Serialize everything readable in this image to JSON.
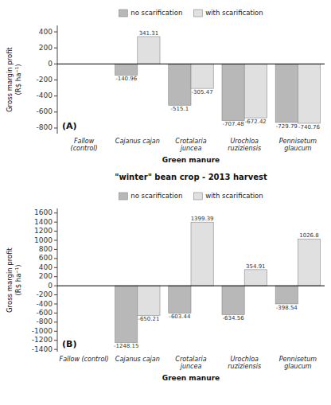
{
  "chart_data": [
    {
      "type": "bar",
      "x_label": "Green manure",
      "y_label": "Gross margin profit\n(R$ ha⁻¹)",
      "annotations": [
        "(A)"
      ],
      "categories": [
        "Fallow\n(control)",
        "Cajanus cajan",
        "Crotalaria\njuncea",
        "Urochloa\nruziziensis",
        "Pennisetum\nglaucum"
      ],
      "series": [
        {
          "name": "no scarification",
          "color": "#b8b8b8",
          "values": [
            null,
            -140.96,
            -515.1,
            -707.48,
            -729.79
          ]
        },
        {
          "name": "with scarification",
          "color": "#e0e0e0",
          "values": [
            null,
            341.31,
            -305.47,
            -672.42,
            -740.76
          ]
        }
      ],
      "ylim": [
        -870,
        480
      ],
      "yticks": [
        -800,
        -600,
        -400,
        -200,
        0,
        200,
        400
      ],
      "grid": false,
      "legend": "top",
      "data_labels": true
    },
    {
      "type": "bar",
      "title": "\"winter\" bean crop - 2013 harvest",
      "x_label": "Green manure",
      "y_label": "Gross margin profit\n(R$ ha⁻¹)",
      "annotations": [
        "(B)"
      ],
      "categories": [
        "Fallow (control)",
        "Cajanus cajan",
        "Crotalaria\njuncea",
        "Urochloa\nruziziensis",
        "Pennisetum\nglaucum"
      ],
      "series": [
        {
          "name": "no scarification",
          "color": "#b8b8b8",
          "values": [
            null,
            -1248.15,
            -603.44,
            -634.56,
            -398.54
          ]
        },
        {
          "name": "with scarification",
          "color": "#e0e0e0",
          "values": [
            null,
            -650.21,
            1399.39,
            354.91,
            1026.8
          ]
        }
      ],
      "ylim": [
        -1450,
        1700
      ],
      "yticks": [
        -1400,
        -1200,
        -1000,
        -800,
        -600,
        -400,
        -200,
        0,
        200,
        400,
        600,
        800,
        1000,
        1200,
        1400,
        1600
      ],
      "grid": false,
      "legend": "top",
      "data_labels": true
    }
  ]
}
